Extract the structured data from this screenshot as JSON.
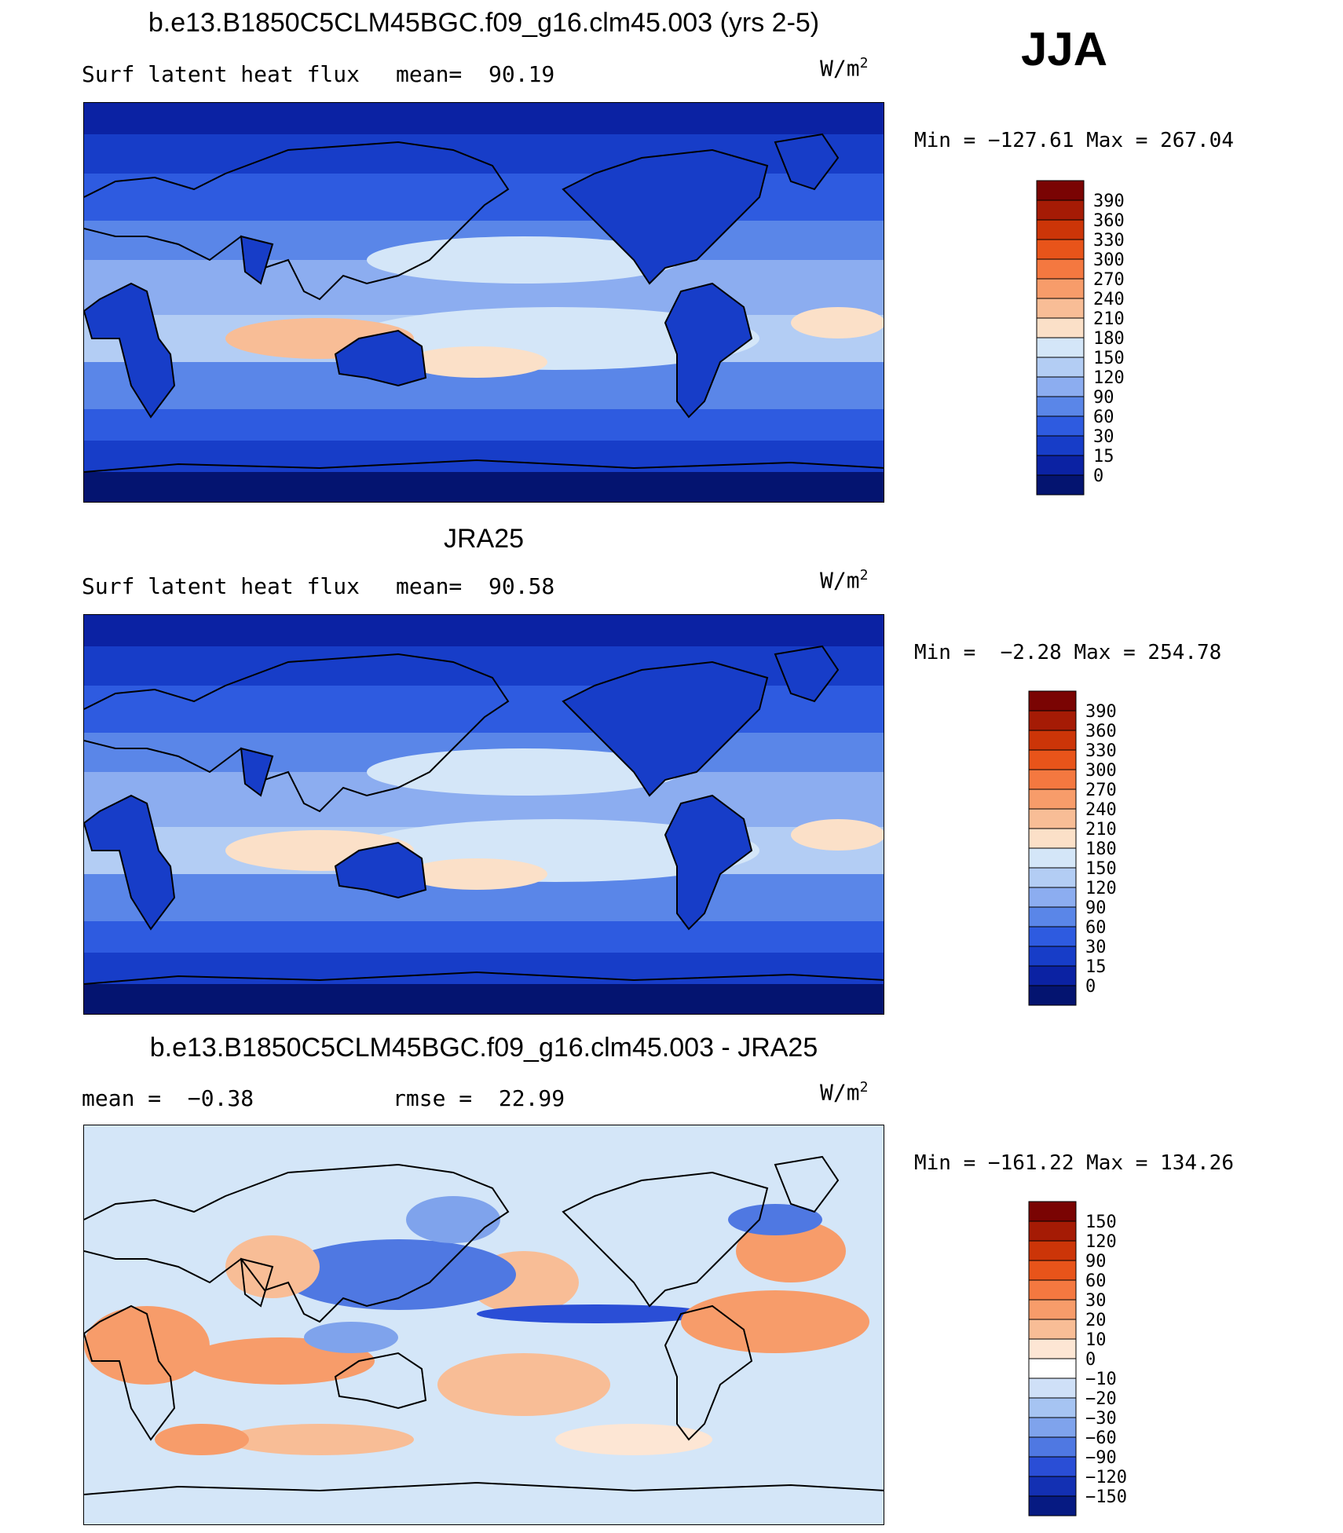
{
  "season": "JJA",
  "panels": [
    {
      "title": "b.e13.B1850C5CLM45BGC.f09_g16.clm45.003 (yrs 2-5)",
      "left_label": "Surf latent heat flux",
      "mid_label": "mean=  90.19",
      "units_base": "W/m",
      "units_exp": "2",
      "minmax": "Min = −127.61 Max = 267.04",
      "kind": "field",
      "colorbar": {
        "labels": [
          "390",
          "360",
          "330",
          "300",
          "270",
          "240",
          "210",
          "180",
          "150",
          "120",
          "90",
          "60",
          "30",
          "15",
          "0"
        ],
        "colors": [
          "#7a0403",
          "#a51b05",
          "#cc3508",
          "#e8541a",
          "#f47840",
          "#f79c6a",
          "#f8bd96",
          "#fbe0c8",
          "#d4e6f8",
          "#b3cdf4",
          "#8cadf0",
          "#5a86e8",
          "#2e5be0",
          "#173dc8",
          "#0b22a3",
          "#041470"
        ]
      }
    },
    {
      "title": "JRA25",
      "left_label": "Surf latent heat flux",
      "mid_label": "mean=  90.58",
      "units_base": "W/m",
      "units_exp": "2",
      "minmax": "Min =  −2.28 Max = 254.78",
      "kind": "field",
      "colorbar": {
        "labels": [
          "390",
          "360",
          "330",
          "300",
          "270",
          "240",
          "210",
          "180",
          "150",
          "120",
          "90",
          "60",
          "30",
          "15",
          "0"
        ],
        "colors": [
          "#7a0403",
          "#a51b05",
          "#cc3508",
          "#e8541a",
          "#f47840",
          "#f79c6a",
          "#f8bd96",
          "#fbe0c8",
          "#d4e6f8",
          "#b3cdf4",
          "#8cadf0",
          "#5a86e8",
          "#2e5be0",
          "#173dc8",
          "#0b22a3",
          "#041470"
        ]
      }
    },
    {
      "title": "b.e13.B1850C5CLM45BGC.f09_g16.clm45.003 - JRA25",
      "left_label": "mean =  −0.38",
      "mid_label": "rmse =  22.99",
      "units_base": "W/m",
      "units_exp": "2",
      "minmax": "Min = −161.22 Max = 134.26",
      "kind": "diff",
      "colorbar": {
        "labels": [
          "150",
          "120",
          "90",
          "60",
          "30",
          "20",
          "10",
          "0",
          "−10",
          "−20",
          "−30",
          "−60",
          "−90",
          "−120",
          "−150"
        ],
        "colors": [
          "#7a0403",
          "#a51b05",
          "#cc3508",
          "#e8541a",
          "#f47840",
          "#f79c6a",
          "#f8bd96",
          "#fde6d4",
          "#ffffff",
          "#cfe0f7",
          "#a6c4f2",
          "#7fa3ec",
          "#4f78e2",
          "#2a4ed6",
          "#1330b3",
          "#061a82"
        ]
      }
    }
  ]
}
